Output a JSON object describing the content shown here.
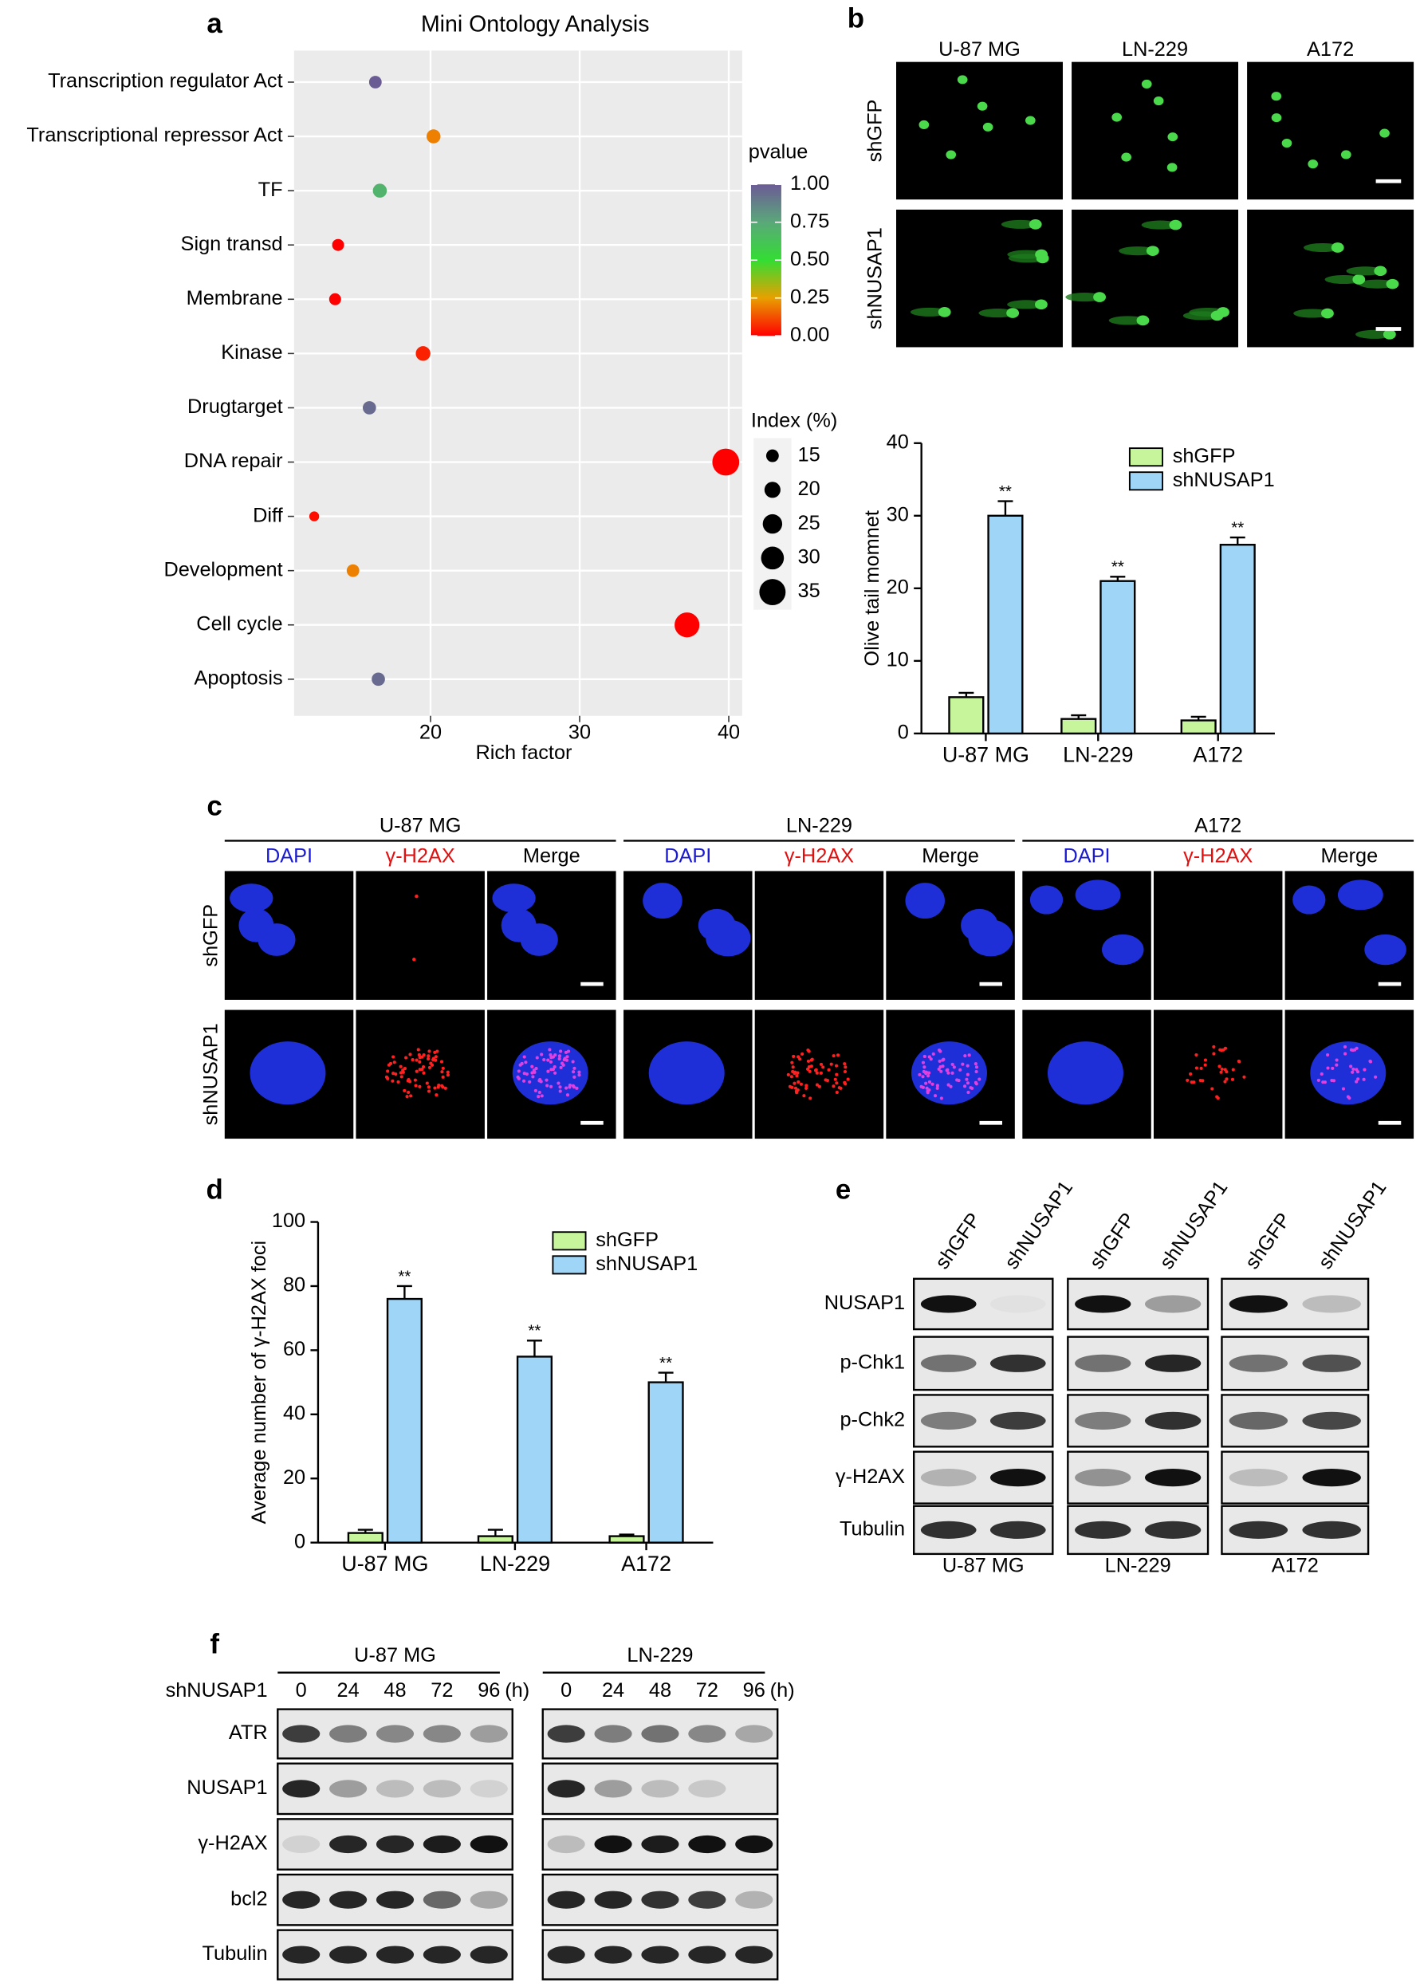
{
  "panel_labels": [
    "a",
    "b",
    "c",
    "d",
    "e",
    "f"
  ],
  "chart_data": [
    {
      "type": "scatter",
      "title": "Mini Ontology Analysis",
      "x_label": "Rich factor",
      "categories": [
        "Transcription regulator Act",
        "Transcriptional repressor Act",
        "TF",
        "Sign transd",
        "Membrane",
        "Kinase",
        "Drugtarget",
        "DNA repair",
        "Diff",
        "Development",
        "Cell cycle",
        "Apoptosis"
      ],
      "x": [
        16.3,
        20.2,
        16.6,
        13.8,
        13.6,
        19.5,
        15.9,
        39.8,
        12.2,
        14.8,
        37.2,
        16.5
      ],
      "sizes": [
        15,
        17,
        17,
        14,
        14,
        18,
        16,
        36,
        11,
        15,
        33,
        16
      ],
      "pvalues": [
        1.0,
        0.2,
        0.7,
        0.0,
        0.0,
        0.05,
        0.95,
        0.0,
        0.02,
        0.2,
        0.0,
        0.95
      ],
      "xlim": [
        10.85,
        40.9
      ],
      "xticks": [
        20,
        30,
        40
      ],
      "grid": true,
      "color_legend": {
        "title": "pvalue",
        "colors": [
          "#ff0000",
          "#e8a000",
          "#33dd33",
          "#5aa87a",
          "#6b5b95"
        ],
        "ticks": [
          {
            "value": 1,
            "label": "1.00"
          },
          {
            "value": 0.75,
            "label": "0.75"
          },
          {
            "value": 0.5,
            "label": "0.50"
          },
          {
            "value": 0.25,
            "label": "0.25"
          },
          {
            "value": 0,
            "label": "0.00"
          }
        ]
      },
      "size_legend": {
        "title": "Index (%)",
        "values": [
          15,
          20,
          25,
          30,
          35
        ]
      }
    },
    {
      "type": "bar",
      "y_label": "Olive tail momnet",
      "categories": [
        "U-87 MG",
        "LN-229",
        "A172"
      ],
      "series": [
        {
          "name": "shGFP",
          "color": "#c6f59c",
          "values": [
            5,
            2,
            1.8
          ],
          "errors": [
            0.6,
            0.5,
            0.5
          ]
        },
        {
          "name": "shNUSAP1",
          "color": "#9fd6f8",
          "values": [
            30,
            21,
            26
          ],
          "errors": [
            2,
            0.6,
            1
          ],
          "annotations": [
            "**",
            "**",
            "**"
          ]
        }
      ],
      "ylim": [
        0,
        40
      ],
      "yticks": [
        0,
        10,
        20,
        30,
        40
      ]
    },
    {
      "type": "bar",
      "y_label": "Average number of γ-H2AX foci",
      "categories": [
        "U-87 MG",
        "LN-229",
        "A172"
      ],
      "series": [
        {
          "name": "shGFP",
          "color": "#c6f59c",
          "values": [
            3,
            2,
            2
          ],
          "errors": [
            1,
            2,
            0.5
          ]
        },
        {
          "name": "shNUSAP1",
          "color": "#9fd6f8",
          "values": [
            76,
            58,
            50
          ],
          "errors": [
            4,
            5,
            3
          ],
          "annotations": [
            "**",
            "**",
            "**"
          ]
        }
      ],
      "ylim": [
        0,
        100
      ],
      "yticks": [
        0,
        20,
        40,
        60,
        80,
        100
      ]
    }
  ],
  "panel_b": {
    "columns": [
      "U-87 MG",
      "LN-229",
      "A172"
    ],
    "rows": [
      "shGFP",
      "shNUSAP1"
    ]
  },
  "panel_c": {
    "columns": [
      "U-87 MG",
      "LN-229",
      "A172"
    ],
    "channels": [
      "DAPI",
      "γ-H2AX",
      "Merge"
    ],
    "rows": [
      "shGFP",
      "shNUSAP1"
    ]
  },
  "panel_e": {
    "lanes": [
      "shGFP",
      "shNUSAP1"
    ],
    "rows": [
      "NUSAP1",
      "p-Chk1",
      "p-Chk2",
      "γ-H2AX",
      "Tubulin"
    ],
    "groups": [
      "U-87 MG",
      "LN-229",
      "A172"
    ]
  },
  "panel_f": {
    "treatment": "shNUSAP1",
    "times": [
      "0",
      "24",
      "48",
      "72",
      "96"
    ],
    "unit": "(h)",
    "groups": [
      "U-87 MG",
      "LN-229"
    ],
    "rows": [
      "ATR",
      "NUSAP1",
      "γ-H2AX",
      "bcl2",
      "Tubulin"
    ]
  }
}
